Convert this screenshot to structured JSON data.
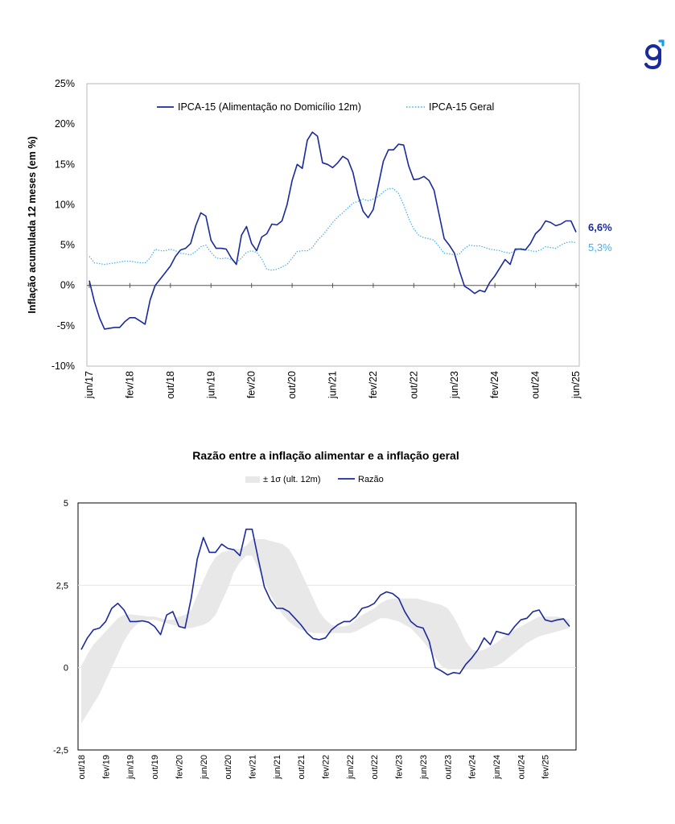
{
  "brand": {
    "accent": "#1a2a9c",
    "light": "#3fb2f0"
  },
  "chart_data": [
    {
      "type": "line",
      "ylabel": "Inflação acumulada 12 meses (em %)",
      "ylim": [
        -10,
        25
      ],
      "yticks": [
        "-10%",
        "-5%",
        "0%",
        "5%",
        "10%",
        "15%",
        "20%",
        "25%"
      ],
      "ytick_values": [
        -10,
        -5,
        0,
        5,
        10,
        15,
        20,
        25
      ],
      "xticks": [
        "jun/17",
        "fev/18",
        "out/18",
        "jun/19",
        "fev/20",
        "out/20",
        "jun/21",
        "fev/22",
        "out/22",
        "jun/23",
        "fev/24",
        "out/24",
        "jun/25"
      ],
      "legend_position": "top",
      "series": [
        {
          "name": "IPCA-15 (Alimentação no Domicílio 12m)",
          "color": "#1a2a9c",
          "style": "solid",
          "end_label": "6,6%",
          "values": [
            0.6,
            -2.0,
            -4.0,
            -5.4,
            -5.3,
            -5.2,
            -5.2,
            -4.5,
            -4.0,
            -4.0,
            -4.4,
            -4.8,
            -1.8,
            0.0,
            0.8,
            1.6,
            2.4,
            3.6,
            4.4,
            4.6,
            5.2,
            7.4,
            9.0,
            8.6,
            5.6,
            4.6,
            4.6,
            4.5,
            3.4,
            2.6,
            6.2,
            7.3,
            5.2,
            4.3,
            6.0,
            6.4,
            7.6,
            7.5,
            8.0,
            10.0,
            13.0,
            15.0,
            14.5,
            18.0,
            19.0,
            18.5,
            15.2,
            15.0,
            14.6,
            15.2,
            16.0,
            15.6,
            14.0,
            11.2,
            9.2,
            8.4,
            9.4,
            12.4,
            15.4,
            16.8,
            16.8,
            17.5,
            17.4,
            14.8,
            13.1,
            13.2,
            13.5,
            13.0,
            11.8,
            8.8,
            5.8,
            5.0,
            4.0,
            1.8,
            -0.1,
            -0.5,
            -1.0,
            -0.6,
            -0.8,
            0.4,
            1.2,
            2.2,
            3.2,
            2.6,
            4.5,
            4.5,
            4.4,
            5.2,
            6.4,
            7.0,
            8.0,
            7.8,
            7.4,
            7.6,
            8.0,
            8.0,
            6.6
          ]
        },
        {
          "name": "IPCA-15 Geral",
          "color": "#3fb2f0",
          "style": "dotted",
          "end_label": "5,3%",
          "values": [
            3.6,
            2.8,
            2.7,
            2.6,
            2.7,
            2.8,
            2.9,
            3.0,
            3.0,
            2.9,
            2.8,
            2.8,
            3.4,
            4.5,
            4.3,
            4.3,
            4.5,
            4.3,
            4.0,
            3.9,
            3.8,
            4.2,
            4.8,
            5.0,
            4.1,
            3.4,
            3.3,
            3.4,
            3.2,
            2.8,
            3.4,
            4.1,
            4.3,
            4.1,
            3.3,
            2.0,
            1.9,
            2.0,
            2.3,
            2.6,
            3.4,
            4.2,
            4.3,
            4.3,
            4.7,
            5.6,
            6.2,
            7.0,
            7.8,
            8.5,
            9.0,
            9.6,
            10.2,
            10.4,
            10.7,
            10.5,
            10.7,
            11.0,
            11.6,
            12.0,
            12.0,
            11.4,
            10.0,
            8.3,
            7.0,
            6.2,
            5.9,
            5.8,
            5.6,
            4.8,
            4.0,
            3.9,
            3.8,
            3.9,
            4.6,
            5.0,
            4.9,
            4.9,
            4.7,
            4.5,
            4.4,
            4.3,
            4.1,
            4.0,
            4.3,
            4.6,
            4.5,
            4.3,
            4.2,
            4.4,
            4.8,
            4.7,
            4.6,
            5.0,
            5.3,
            5.4,
            5.3
          ]
        }
      ]
    },
    {
      "type": "line",
      "title": "Razão entre a inflação alimentar e a inflação geral",
      "ylim": [
        -2.5,
        5
      ],
      "yticks": [
        "-2,5",
        "0",
        "2,5",
        "5"
      ],
      "ytick_values": [
        -2.5,
        0,
        2.5,
        5
      ],
      "xticks": [
        "out/18",
        "fev/19",
        "jun/19",
        "out/19",
        "fev/20",
        "jun/20",
        "out/20",
        "fev/21",
        "jun/21",
        "out/21",
        "fev/22",
        "jun/22",
        "out/22",
        "fev/23",
        "jun/23",
        "out/23",
        "fev/24",
        "jun/24",
        "out/24",
        "fev/25"
      ],
      "legend_position": "top",
      "series": [
        {
          "name": "Razão",
          "color": "#1a2a9c",
          "values": [
            0.55,
            0.9,
            1.15,
            1.2,
            1.4,
            1.8,
            1.95,
            1.75,
            1.4,
            1.4,
            1.42,
            1.38,
            1.25,
            1.0,
            1.6,
            1.7,
            1.25,
            1.2,
            2.1,
            3.3,
            3.95,
            3.5,
            3.5,
            3.75,
            3.62,
            3.58,
            3.4,
            4.2,
            4.2,
            3.3,
            2.45,
            2.05,
            1.8,
            1.8,
            1.7,
            1.5,
            1.3,
            1.05,
            0.88,
            0.85,
            0.9,
            1.15,
            1.3,
            1.4,
            1.4,
            1.55,
            1.8,
            1.85,
            1.95,
            2.2,
            2.3,
            2.25,
            2.1,
            1.7,
            1.4,
            1.25,
            1.2,
            0.8,
            0.0,
            -0.1,
            -0.22,
            -0.15,
            -0.18,
            0.1,
            0.3,
            0.55,
            0.9,
            0.7,
            1.1,
            1.05,
            1.0,
            1.25,
            1.45,
            1.5,
            1.7,
            1.75,
            1.45,
            1.4,
            1.45,
            1.48,
            1.25
          ]
        },
        {
          "name": "± 1σ (ult. 12m)",
          "color": "#e8e8e8",
          "band_upper": [
            0.05,
            0.4,
            0.7,
            0.9,
            1.1,
            1.3,
            1.5,
            1.6,
            1.62,
            1.6,
            1.58,
            1.55,
            1.55,
            1.5,
            1.45,
            1.45,
            1.55,
            1.6,
            1.75,
            2.2,
            2.65,
            3.05,
            3.35,
            3.5,
            3.55,
            3.6,
            3.6,
            3.7,
            3.9,
            3.9,
            3.9,
            3.85,
            3.8,
            3.75,
            3.6,
            3.3,
            2.9,
            2.5,
            2.1,
            1.7,
            1.45,
            1.3,
            1.25,
            1.25,
            1.3,
            1.45,
            1.6,
            1.7,
            1.8,
            1.95,
            2.05,
            2.1,
            2.1,
            2.1,
            2.1,
            2.1,
            2.05,
            2.0,
            1.95,
            1.9,
            1.8,
            1.55,
            1.2,
            0.8,
            0.55,
            0.5,
            0.55,
            0.65,
            0.75,
            0.9,
            1.05,
            1.15,
            1.25,
            1.35,
            1.45,
            1.55,
            1.55,
            1.55,
            1.55,
            1.5,
            1.45
          ],
          "band_lower": [
            -1.7,
            -1.4,
            -1.1,
            -0.8,
            -0.4,
            0.0,
            0.4,
            0.8,
            1.1,
            1.3,
            1.4,
            1.45,
            1.45,
            1.4,
            1.35,
            1.3,
            1.25,
            1.2,
            1.2,
            1.25,
            1.3,
            1.4,
            1.6,
            2.0,
            2.4,
            2.9,
            3.2,
            3.4,
            3.4,
            3.0,
            2.6,
            2.2,
            1.9,
            1.6,
            1.4,
            1.25,
            1.15,
            1.1,
            1.05,
            1.05,
            1.05,
            1.05,
            1.05,
            1.05,
            1.05,
            1.1,
            1.2,
            1.3,
            1.4,
            1.5,
            1.5,
            1.45,
            1.4,
            1.3,
            1.2,
            1.0,
            0.8,
            0.55,
            0.3,
            0.05,
            -0.05,
            -0.05,
            -0.05,
            -0.05,
            -0.05,
            -0.05,
            -0.05,
            0.0,
            0.05,
            0.15,
            0.3,
            0.45,
            0.6,
            0.75,
            0.85,
            0.95,
            1.0,
            1.05,
            1.1,
            1.15,
            1.2
          ]
        }
      ]
    }
  ]
}
